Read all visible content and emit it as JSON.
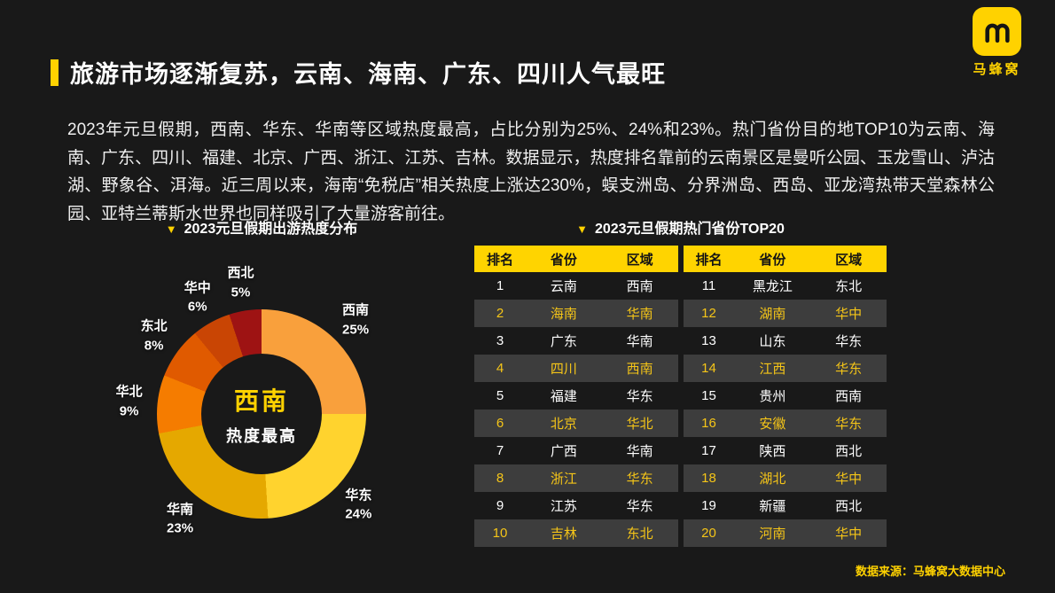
{
  "logo": {
    "text": "马蜂窝",
    "icon": "mafengwo-bee-icon"
  },
  "header": {
    "title": "旅游市场逐渐复苏，云南、海南、广东、四川人气最旺"
  },
  "intro": {
    "text": "2023年元旦假期，西南、华东、华南等区域热度最高，占比分别为25%、24%和23%。热门省份目的地TOP10为云南、海南、广东、四川、福建、北京、广西、浙江、江苏、吉林。数据显示，热度排名靠前的云南景区是曼听公园、玉龙雪山、泸沽湖、野象谷、洱海。近三周以来，海南“免税店”相关热度上涨达230%，蜈支洲岛、分界洲岛、西岛、亚龙湾热带天堂森林公园、亚特兰蒂斯水世界也同样吸引了大量游客前往。"
  },
  "icons": {
    "triangle_down": "▼"
  },
  "chart_data": [
    {
      "type": "pie",
      "title": "2023元旦假期出游热度分布",
      "center_label": "西南",
      "center_sublabel": "热度最高",
      "categories": [
        "西南",
        "华东",
        "华南",
        "华北",
        "东北",
        "华中",
        "西北"
      ],
      "values": [
        25,
        24,
        23,
        9,
        8,
        6,
        5
      ],
      "unit": "%",
      "colors": [
        "#F9A03C",
        "#FFD32E",
        "#E5A800",
        "#F57C00",
        "#E05A00",
        "#C94504",
        "#9E1313"
      ],
      "donut": true,
      "legend_position": "around"
    },
    {
      "type": "table",
      "title": "2023元旦假期热门省份TOP20",
      "columns": [
        "排名",
        "省份",
        "区域"
      ],
      "rows_left": [
        [
          "1",
          "云南",
          "西南"
        ],
        [
          "2",
          "海南",
          "华南"
        ],
        [
          "3",
          "广东",
          "华南"
        ],
        [
          "4",
          "四川",
          "西南"
        ],
        [
          "5",
          "福建",
          "华东"
        ],
        [
          "6",
          "北京",
          "华北"
        ],
        [
          "7",
          "广西",
          "华南"
        ],
        [
          "8",
          "浙江",
          "华东"
        ],
        [
          "9",
          "江苏",
          "华东"
        ],
        [
          "10",
          "吉林",
          "东北"
        ]
      ],
      "rows_right": [
        [
          "11",
          "黑龙江",
          "东北"
        ],
        [
          "12",
          "湖南",
          "华中"
        ],
        [
          "13",
          "山东",
          "华东"
        ],
        [
          "14",
          "江西",
          "华东"
        ],
        [
          "15",
          "贵州",
          "西南"
        ],
        [
          "16",
          "安徽",
          "华东"
        ],
        [
          "17",
          "陕西",
          "西北"
        ],
        [
          "18",
          "湖北",
          "华中"
        ],
        [
          "19",
          "新疆",
          "西北"
        ],
        [
          "20",
          "河南",
          "华中"
        ]
      ]
    }
  ],
  "footer": {
    "source": "数据来源：马蜂窝大数据中心"
  }
}
